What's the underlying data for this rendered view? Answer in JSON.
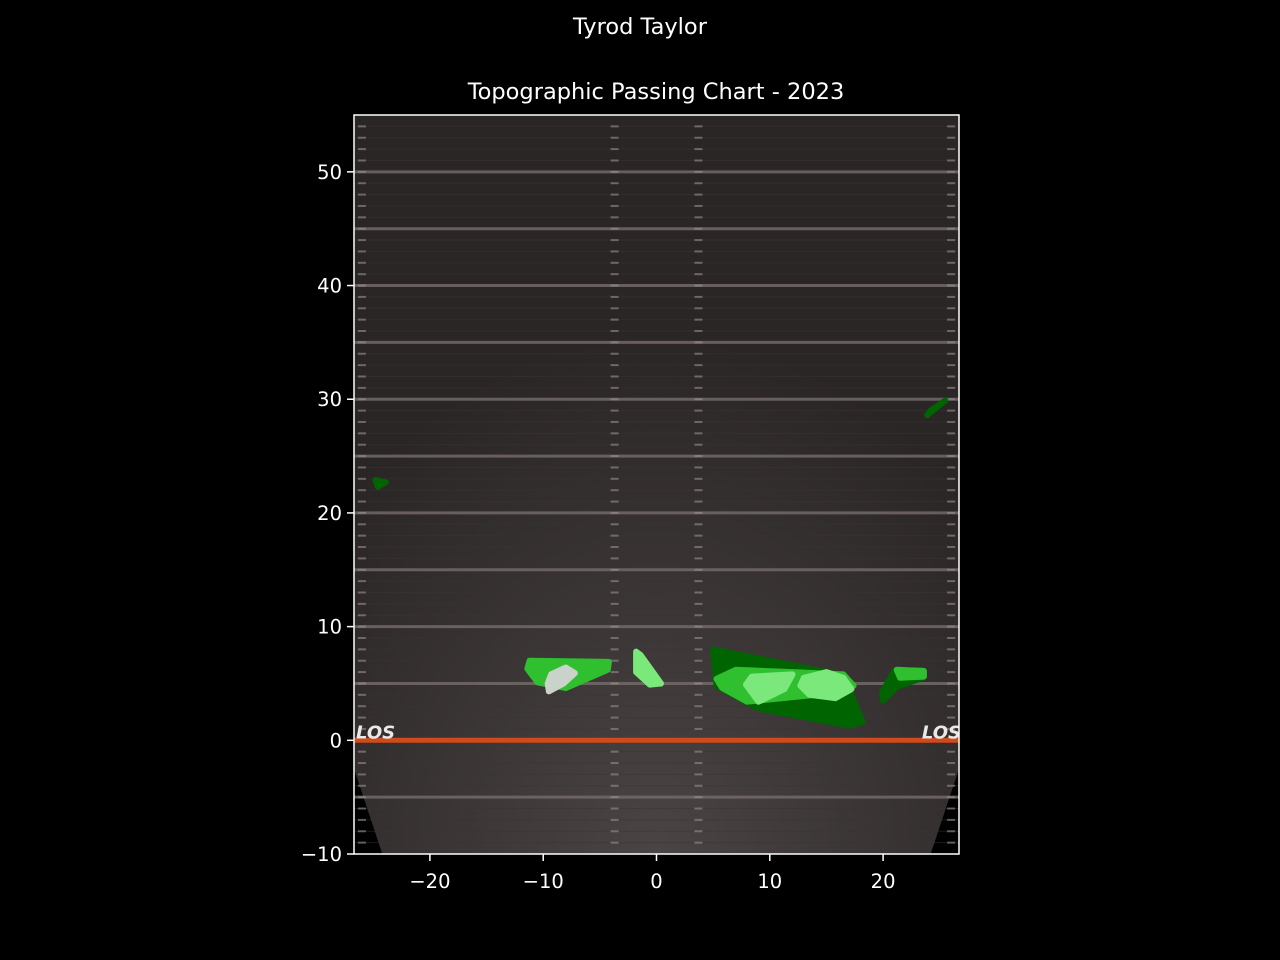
{
  "figure": {
    "suptitle": "Tyrod Taylor"
  },
  "chart_data": {
    "type": "contour",
    "title": "Topographic Passing Chart - 2023",
    "xlabel": "",
    "ylabel": "",
    "xlim": [
      -26.7,
      26.7
    ],
    "ylim": [
      -10,
      55
    ],
    "x_ticks": [
      -20,
      -10,
      0,
      10,
      20
    ],
    "y_ticks": [
      -10,
      0,
      10,
      20,
      30,
      40,
      50
    ],
    "x_tick_labels": [
      "−20",
      "−10",
      "0",
      "10",
      "20"
    ],
    "y_tick_labels": [
      "−10",
      "0",
      "10",
      "20",
      "30",
      "40",
      "50"
    ],
    "grid": false,
    "background": "football field image",
    "field": {
      "line_of_scrimmage": 0,
      "los_label": "LOS",
      "los_color": "#d04a1a",
      "yard_lines": [
        -5,
        5,
        10,
        15,
        20,
        25,
        30,
        35,
        40,
        45,
        50
      ],
      "hash_marks_x": [
        -3.7,
        3.7
      ]
    },
    "colors": {
      "level_1": "#006400",
      "level_2": "#2fbf2f",
      "level_3": "#7be87b",
      "level_4": "#c9d3c9"
    },
    "contours": [
      {
        "level": 1,
        "points": [
          [
            5.0,
            8.0
          ],
          [
            16.5,
            5.7
          ],
          [
            18.2,
            1.6
          ],
          [
            17.0,
            1.3
          ],
          [
            9.0,
            2.8
          ],
          [
            5.3,
            4.8
          ]
        ]
      },
      {
        "level": 1,
        "points": [
          [
            21.0,
            6.1
          ],
          [
            23.4,
            6.2
          ],
          [
            23.5,
            5.5
          ],
          [
            21.2,
            4.7
          ],
          [
            20.0,
            3.5
          ],
          [
            19.9,
            4.2
          ]
        ]
      },
      {
        "level": 1,
        "points": [
          [
            -24.8,
            22.9
          ],
          [
            -23.9,
            22.7
          ],
          [
            -24.6,
            22.3
          ]
        ]
      },
      {
        "level": 1,
        "points": [
          [
            23.9,
            28.6
          ],
          [
            25.5,
            29.9
          ],
          [
            24.2,
            29.0
          ]
        ]
      },
      {
        "level": 2,
        "points": [
          [
            -11.2,
            7.0
          ],
          [
            -4.2,
            6.9
          ],
          [
            -4.3,
            6.2
          ],
          [
            -8.0,
            4.6
          ],
          [
            -10.5,
            5.1
          ],
          [
            -11.4,
            6.3
          ]
        ]
      },
      {
        "level": 2,
        "points": [
          [
            5.3,
            5.4
          ],
          [
            7.0,
            6.2
          ],
          [
            12.0,
            6.0
          ],
          [
            16.5,
            5.8
          ],
          [
            17.4,
            4.8
          ],
          [
            16.0,
            4.2
          ],
          [
            12.0,
            3.8
          ],
          [
            8.0,
            3.4
          ],
          [
            5.8,
            4.6
          ]
        ]
      },
      {
        "level": 2,
        "points": [
          [
            21.2,
            6.2
          ],
          [
            23.6,
            6.1
          ],
          [
            23.6,
            5.6
          ],
          [
            21.5,
            5.5
          ]
        ]
      },
      {
        "level": 3,
        "points": [
          [
            -1.8,
            7.8
          ],
          [
            -1.4,
            7.5
          ],
          [
            0.4,
            5.0
          ],
          [
            -0.6,
            4.9
          ],
          [
            -1.8,
            6.0
          ]
        ]
      },
      {
        "level": 3,
        "points": [
          [
            8.4,
            5.6
          ],
          [
            12.0,
            5.8
          ],
          [
            11.3,
            4.5
          ],
          [
            9.0,
            3.4
          ],
          [
            7.9,
            4.9
          ]
        ]
      },
      {
        "level": 3,
        "points": [
          [
            13.0,
            5.5
          ],
          [
            15.0,
            6.0
          ],
          [
            16.5,
            5.5
          ],
          [
            17.2,
            4.5
          ],
          [
            15.8,
            3.7
          ],
          [
            13.5,
            4.0
          ],
          [
            12.7,
            4.8
          ]
        ]
      },
      {
        "level": 4,
        "points": [
          [
            -9.3,
            5.8
          ],
          [
            -8.0,
            6.4
          ],
          [
            -7.2,
            5.9
          ],
          [
            -8.2,
            5.0
          ],
          [
            -9.5,
            4.3
          ],
          [
            -9.6,
            5.0
          ]
        ]
      }
    ]
  }
}
